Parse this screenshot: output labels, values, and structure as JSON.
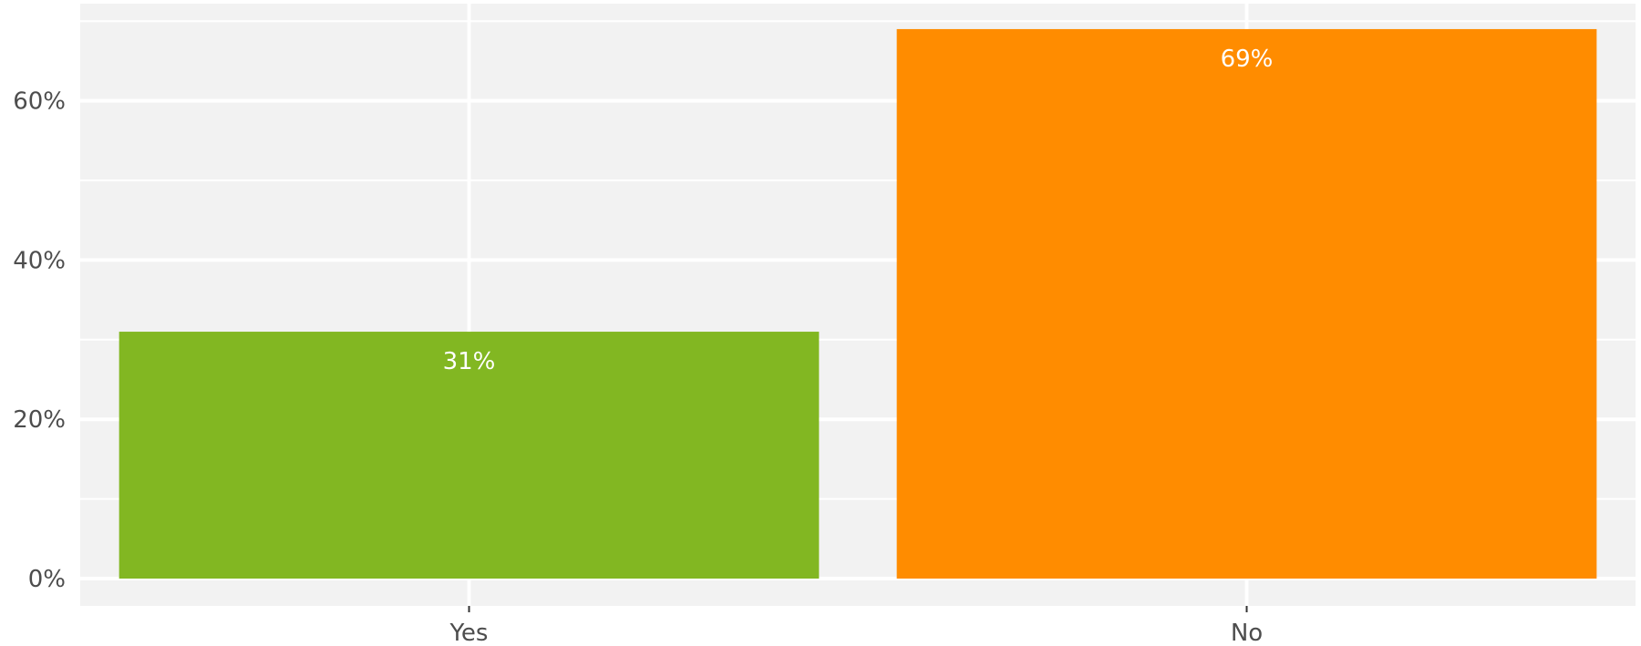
{
  "chart_data": {
    "type": "bar",
    "title": "",
    "xlabel": "",
    "ylabel": "",
    "categories": [
      "Yes",
      "No"
    ],
    "values": [
      31,
      69
    ],
    "data_labels": [
      "31%",
      "69%"
    ],
    "bar_colors": [
      "#82b722",
      "#ff8c00"
    ],
    "panel_background": "#f2f2f2",
    "grid_color": "#ffffff",
    "grid": true,
    "ylim": [
      0,
      72.45
    ],
    "yticks": [
      0,
      20,
      40,
      60
    ],
    "ytick_labels": [
      "0%",
      "20%",
      "40%",
      "60%"
    ],
    "legend": "none"
  }
}
